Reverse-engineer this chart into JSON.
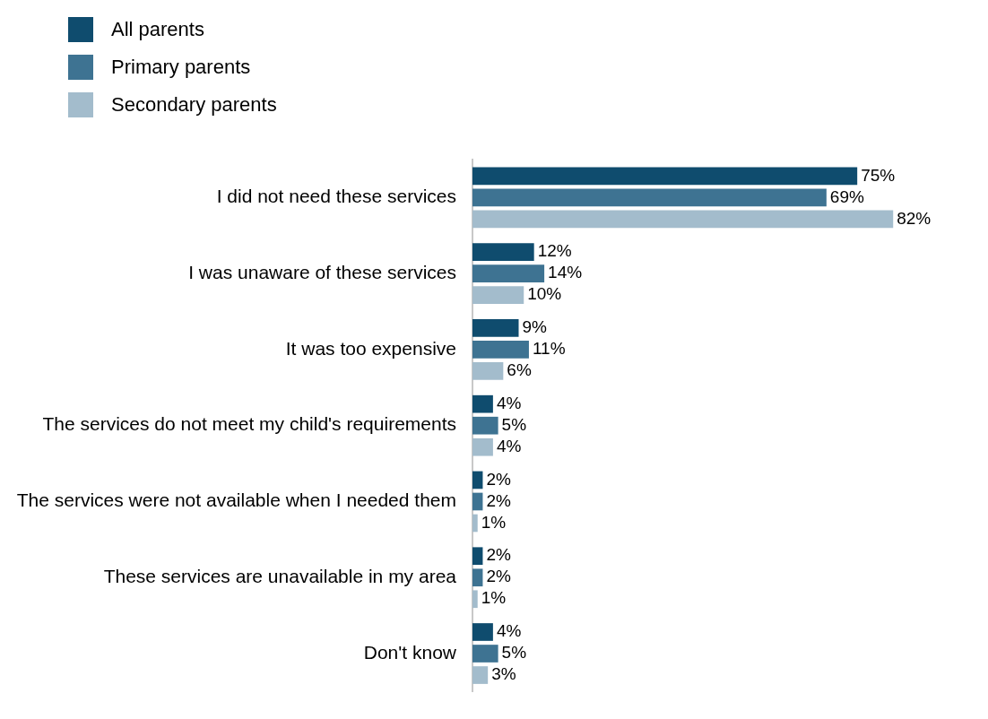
{
  "chart_data": {
    "type": "bar",
    "orientation": "horizontal",
    "legend": "top left",
    "categories": [
      "I did not need these services",
      "I was unaware of these services",
      "It was too expensive",
      "The services do not meet my child's requirements",
      "The services were not available when I needed them",
      "These services are unavailable in my area",
      "Don't know"
    ],
    "series": [
      {
        "name": "All parents",
        "color": "#0f4c6e",
        "values": [
          75,
          12,
          9,
          4,
          2,
          2,
          4
        ],
        "value_labels": [
          "75%",
          "12%",
          "9%",
          "4%",
          "2%",
          "2%",
          "4%"
        ]
      },
      {
        "name": "Primary parents",
        "color": "#3e7392",
        "values": [
          69,
          14,
          11,
          5,
          2,
          2,
          5
        ],
        "value_labels": [
          "69%",
          "14%",
          "11%",
          "5%",
          "2%",
          "2%",
          "5%"
        ]
      },
      {
        "name": "Secondary parents",
        "color": "#a3bccc",
        "values": [
          82,
          10,
          6,
          4,
          1,
          1,
          3
        ],
        "value_labels": [
          "82%",
          "10%",
          "6%",
          "4%",
          "1%",
          "1%",
          "3%"
        ]
      }
    ]
  }
}
